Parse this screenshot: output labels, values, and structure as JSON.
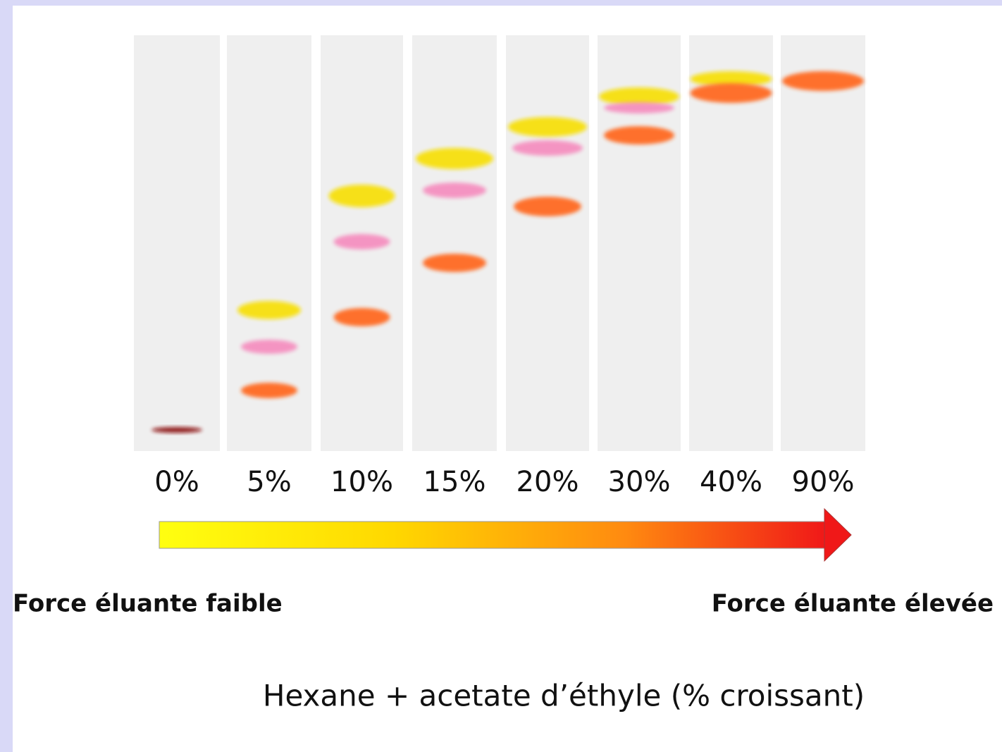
{
  "lanes": [
    "0%",
    "5%",
    "10%",
    "15%",
    "20%",
    "30%",
    "40%",
    "90%"
  ],
  "left_label": "Force éluante faible",
  "right_label": "Force éluante élevée",
  "caption": "Hexane + acetate d’éthyle (% croissant)"
}
